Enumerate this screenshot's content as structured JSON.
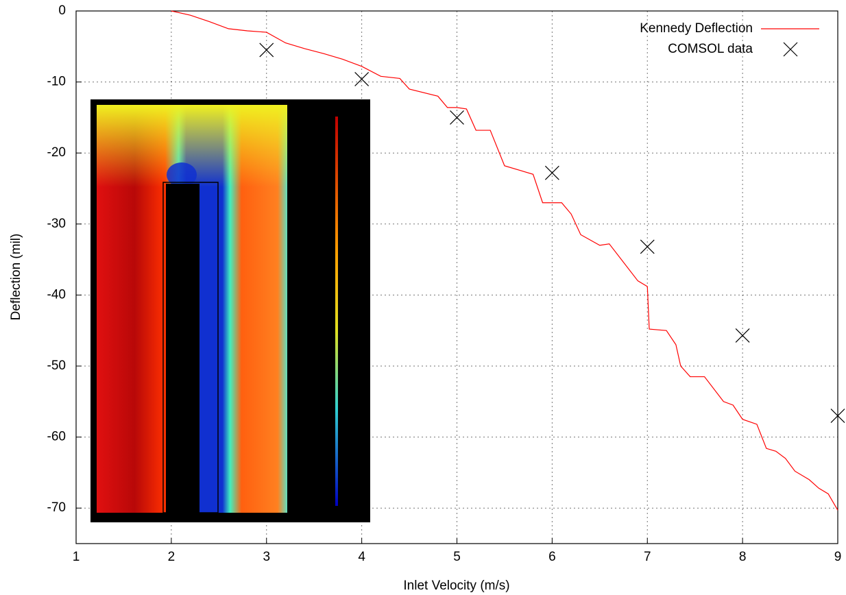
{
  "chart_data": {
    "type": "line",
    "xlabel": "Inlet Velocity (m/s)",
    "ylabel": "Deflection (mil)",
    "xlim": [
      1,
      9
    ],
    "ylim": [
      -75,
      0
    ],
    "xticks": [
      1,
      2,
      3,
      4,
      5,
      6,
      7,
      8,
      9
    ],
    "yticks": [
      0,
      -10,
      -20,
      -30,
      -40,
      -50,
      -60,
      -70
    ],
    "grid": true,
    "legend": "top-right",
    "series": [
      {
        "name": "Kennedy Deflection",
        "type": "line",
        "color": "#ff0000",
        "x": [
          2,
          2.2,
          2.4,
          2.6,
          2.8,
          3,
          3.2,
          3.4,
          3.6,
          3.8,
          4,
          4.2,
          4.4,
          4.5,
          4.8,
          4.9,
          5,
          5.1,
          5.2,
          5.35,
          5.5,
          5.8,
          5.9,
          6.1,
          6.2,
          6.3,
          6.5,
          6.6,
          6.9,
          7,
          7.02,
          7.2,
          7.3,
          7.35,
          7.45,
          7.6,
          7.8,
          7.9,
          8,
          8.15,
          8.25,
          8.35,
          8.45,
          8.55,
          8.7,
          8.8,
          8.9,
          9
        ],
        "values": [
          0,
          -0.6,
          -1.5,
          -2.5,
          -2.8,
          -3,
          -4.5,
          -5.3,
          -6,
          -6.8,
          -7.8,
          -9.2,
          -9.5,
          -11,
          -12,
          -13.6,
          -13.6,
          -13.8,
          -16.8,
          -16.8,
          -21.8,
          -23,
          -27,
          -27,
          -28.6,
          -31.5,
          -33,
          -32.8,
          -38,
          -38.8,
          -44.8,
          -45,
          -47,
          -50,
          -51.5,
          -51.5,
          -55,
          -55.5,
          -57.5,
          -58.2,
          -61.6,
          -62,
          -63,
          -64.8,
          -66,
          -67.2,
          -68,
          -70.3
        ]
      },
      {
        "name": "COMSOL data",
        "type": "scatter",
        "color": "#000000",
        "x": [
          3,
          4,
          5,
          6,
          7,
          8,
          9
        ],
        "values": [
          -5.5,
          -9.6,
          -15,
          -22.8,
          -33.2,
          -45.7,
          -57
        ]
      }
    ]
  }
}
